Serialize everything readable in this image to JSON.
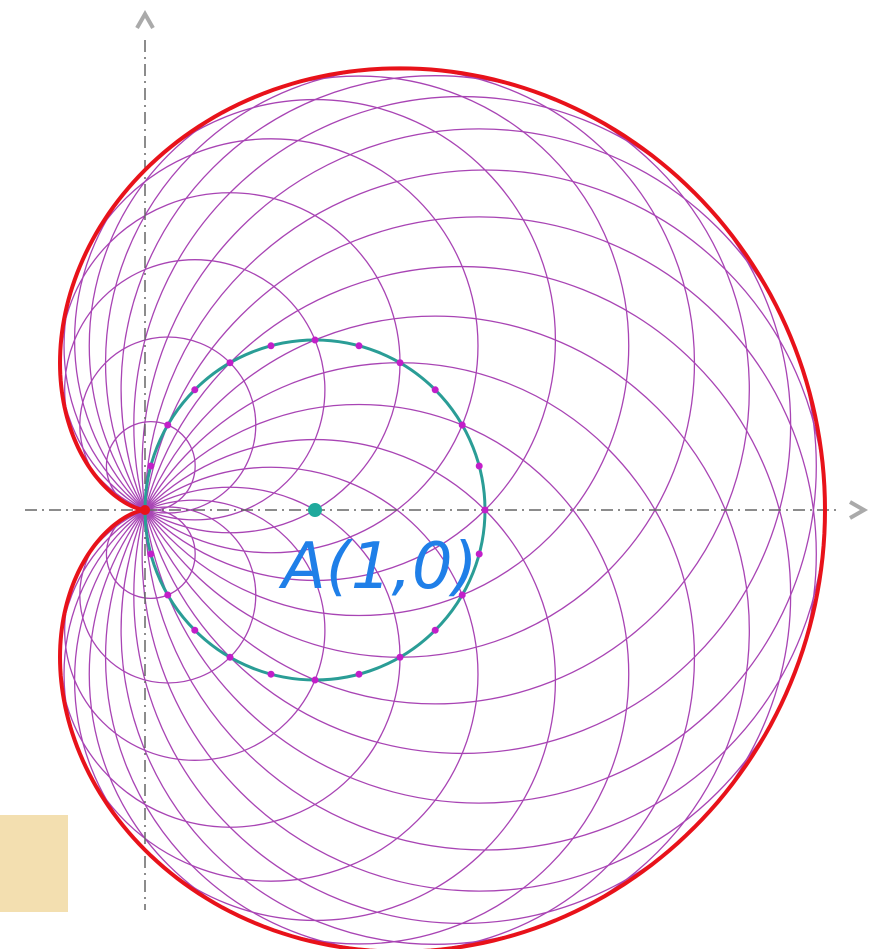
{
  "label": "A(1,0)"
}
